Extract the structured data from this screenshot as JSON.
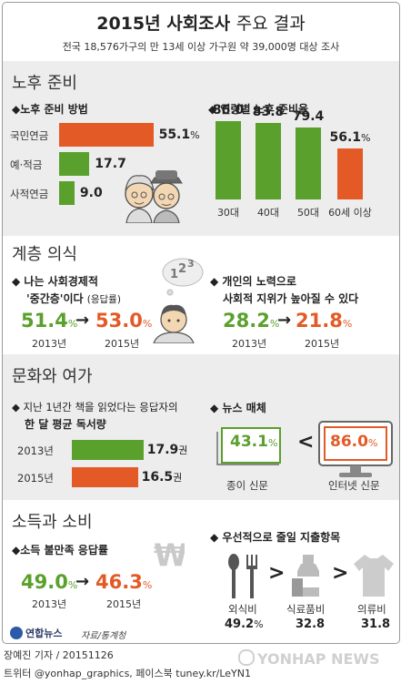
{
  "header": {
    "title_bold": "2015년 사회조사",
    "title_light": "주요 결과",
    "subtitle": "전국 18,576가구의 만 13세 이상 가구원 약 39,000명 대상 조사"
  },
  "colors": {
    "green": "#5aa02c",
    "orange": "#e35a26",
    "panel": "#ededed"
  },
  "sections": {
    "retirement": "노후 준비",
    "class": "계층 의식",
    "culture": "문화와 여가",
    "income": "소득과 소비"
  },
  "chart_data": [
    {
      "type": "bar",
      "title": "◆노후 준비 방법",
      "orientation": "horizontal",
      "categories": [
        "국민연금",
        "예·적금",
        "사적연금"
      ],
      "values": [
        55.1,
        17.7,
        9.0
      ],
      "labels": [
        "55.1",
        "17.7",
        "9.0"
      ],
      "unit": "%",
      "highlight_color": "#e35a26",
      "color": "#5aa02c"
    },
    {
      "type": "bar",
      "title": "◆ 연령별 노후 준비율",
      "orientation": "vertical",
      "categories": [
        "30대",
        "40대",
        "50대",
        "60세 이상"
      ],
      "values": [
        86.0,
        83.8,
        79.4,
        56.1
      ],
      "labels": [
        "86.0",
        "83.8",
        "79.4",
        "56.1"
      ],
      "unit": "%"
    },
    {
      "type": "bar",
      "title": "한 달 평균 독서량",
      "orientation": "horizontal",
      "categories": [
        "2013년",
        "2015년"
      ],
      "values": [
        17.9,
        16.5
      ],
      "labels": [
        "17.9",
        "16.5"
      ],
      "unit": "권"
    }
  ],
  "retirement": {
    "h_unit_label": "%"
  },
  "class_awareness": {
    "middle_q_line1": "◆ 나는 사회경제적",
    "middle_q_line2": "'중간층'이다",
    "middle_q_note": "(응답률)",
    "middle_from": "51.4",
    "middle_to": "53.0",
    "effort_q_line1": "◆ 개인의 노력으로",
    "effort_q_line2": "사회적 지위가 높아질 수 있다",
    "effort_from": "28.2",
    "effort_to": "21.8",
    "pct": "%",
    "year_from": "2013년",
    "year_to": "2015년"
  },
  "culture": {
    "reading_q_line1": "◆ 지난 1년간 책을 읽었다는 응답자의",
    "reading_q_line2": "한 달 평균 독서량",
    "news_title": "◆ 뉴스 매체",
    "paper_value": "43.1",
    "internet_value": "86.0",
    "pct": "%",
    "compare": "<",
    "paper_label": "종이 신문",
    "internet_label": "인터넷 신문"
  },
  "income": {
    "dissat_title": "◆소득 불만족 응답률",
    "dissat_from": "49.0",
    "dissat_to": "46.3",
    "pct": "%",
    "year_from": "2013년",
    "year_to": "2015년",
    "cut_title": "◆ 우선적으로 줄일 지출항목",
    "items": [
      {
        "label": "외식비",
        "value": "49.2",
        "unit": "%"
      },
      {
        "label": "식료품비",
        "value": "32.8",
        "unit": ""
      },
      {
        "label": "의류비",
        "value": "31.8",
        "unit": ""
      }
    ],
    "gt": ">"
  },
  "credits": {
    "logo_text": "연합뉴스",
    "source": "자료/통계청",
    "reporter": "장예진 기자 / 20151126",
    "social": "트위터 @yonhap_graphics, 페이스북 tuney.kr/LeYN1",
    "watermark": "YONHAP NEWS"
  }
}
